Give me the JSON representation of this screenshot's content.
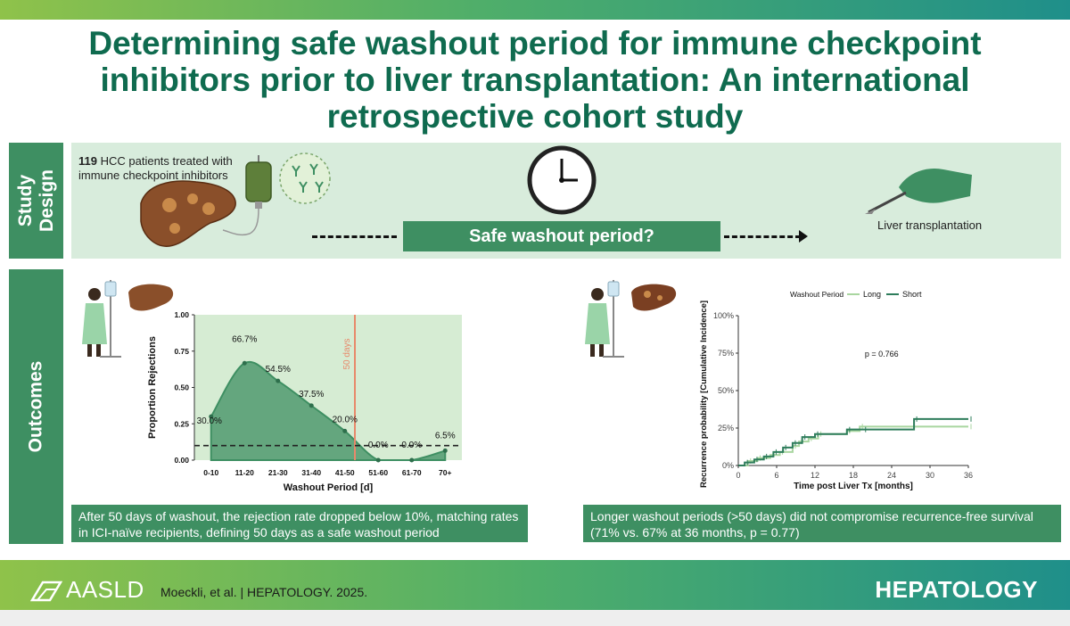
{
  "title": "Determining safe washout period for immune checkpoint inhibitors prior to liver transplantation: An international retrospective cohort study",
  "study_design": {
    "label": "Study\nDesign",
    "count": "119",
    "patients_text": " HCC patients treated with immune checkpoint inhibitors",
    "washout_question": "Safe washout period?",
    "transplant_label": "Liver transplantation"
  },
  "outcomes": {
    "label": "Outcomes",
    "left_caption": "After 50 days of washout, the rejection rate dropped below 10%, matching rates in ICI-naïve recipients, defining 50 days as a safe washout period",
    "right_caption": "Longer washout periods (>50 days) did not compromise recurrence-free survival (71% vs. 67% at 36 months, p = 0.77)"
  },
  "chart_data": [
    {
      "type": "area",
      "title": "",
      "xlabel": "Washout Period [d]",
      "ylabel": "Proportion Rejections",
      "categories": [
        "0-10",
        "11-20",
        "21-30",
        "31-40",
        "41-50",
        "51-60",
        "61-70",
        "70+"
      ],
      "values": [
        0.3,
        0.667,
        0.545,
        0.375,
        0.2,
        0.0,
        0.0,
        0.065
      ],
      "data_labels": [
        "30.0%",
        "66.7%",
        "54.5%",
        "37.5%",
        "20.0%",
        "0.0%",
        "0.0%",
        "6.5%"
      ],
      "y_ticks": [
        "0.00",
        "0.25",
        "0.50",
        "0.75",
        "1.00"
      ],
      "ylim": [
        0,
        1
      ],
      "threshold": 0.1,
      "vline_label": "50 days",
      "colors": {
        "area": "#3e8f62",
        "background": "#d6ecd3",
        "vline": "#e8896b"
      }
    },
    {
      "type": "line",
      "title": "",
      "xlabel": "Time post Liver Tx [months]",
      "ylabel": "Recurrence probability [Cumulative Incidence]",
      "legend_title": "Washout Period",
      "legend_position": "top",
      "x_ticks": [
        "0",
        "6",
        "12",
        "18",
        "24",
        "30",
        "36"
      ],
      "y_ticks": [
        "0%",
        "25%",
        "50%",
        "75%",
        "100%"
      ],
      "xlim": [
        0,
        36
      ],
      "ylim": [
        0,
        100
      ],
      "annotation": "p = 0.766",
      "series": [
        {
          "name": "Long",
          "color": "#a9d6a0",
          "x": [
            0,
            1.5,
            3,
            5,
            6.5,
            8.5,
            9.5,
            11,
            12.5,
            17,
            19,
            36
          ],
          "y": [
            0,
            3,
            5,
            7,
            9,
            13,
            16,
            18,
            21,
            23,
            26,
            26
          ]
        },
        {
          "name": "Short",
          "color": "#2e7d5b",
          "x": [
            0,
            1,
            2.5,
            4,
            5.5,
            7,
            8.5,
            10,
            12,
            17,
            19.5,
            27.5,
            36
          ],
          "y": [
            0,
            2,
            4,
            6,
            9,
            12,
            15,
            19,
            21,
            24,
            24,
            31,
            31
          ]
        }
      ]
    }
  ],
  "footer": {
    "logo_text": "AASLD",
    "reference": "Moeckli, et al. | HEPATOLOGY. 2025.",
    "journal": "HEPATOLOGY"
  }
}
